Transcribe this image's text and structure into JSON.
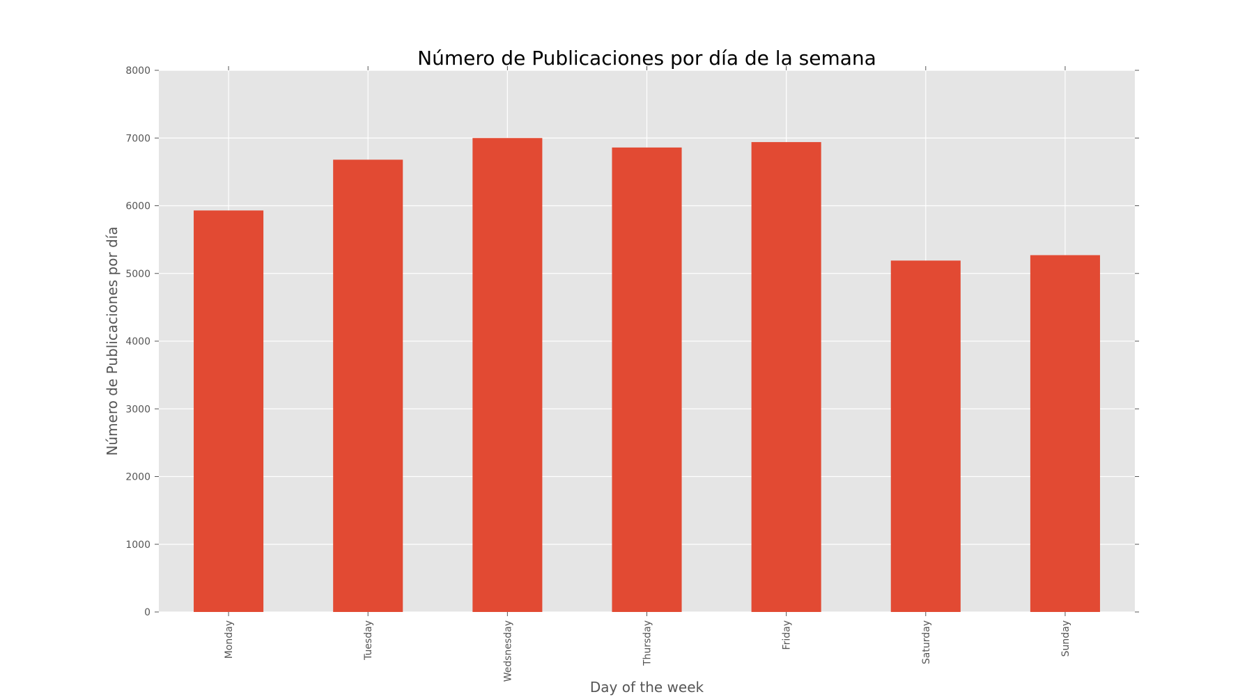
{
  "chart_data": {
    "type": "bar",
    "title": "Número de Publicaciones por día de la semana",
    "xlabel": "Day of the week",
    "ylabel": "Número de Publicaciones por día",
    "categories": [
      "Monday",
      "Tuesday",
      "Wedsnesday",
      "Thursday",
      "Friday",
      "Saturday",
      "Sunday"
    ],
    "values": [
      5930,
      6680,
      7000,
      6860,
      6940,
      5190,
      5270
    ],
    "ylim": [
      0,
      8000
    ],
    "yticks": [
      0,
      1000,
      2000,
      3000,
      4000,
      5000,
      6000,
      7000,
      8000
    ],
    "grid": true,
    "colors": {
      "bar": "#E24A33",
      "plot_background": "#E5E5E5",
      "grid": "#FFFFFF"
    }
  }
}
